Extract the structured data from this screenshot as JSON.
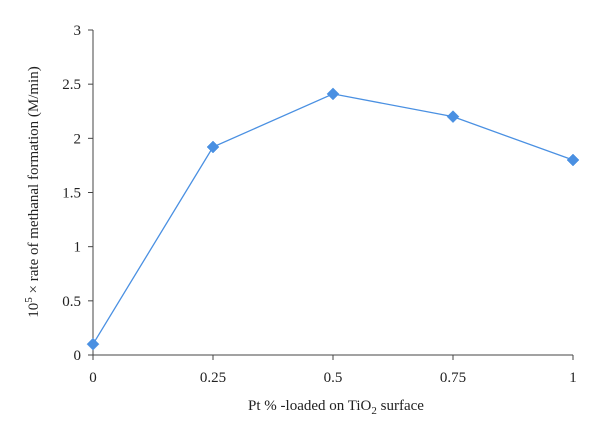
{
  "chart_data": {
    "type": "line",
    "title": "",
    "x": [
      0,
      0.25,
      0.5,
      0.75,
      1
    ],
    "x_tick_labels": [
      "0",
      "0.25",
      "0.5",
      "0.75",
      "1"
    ],
    "y_ticks": [
      0,
      0.5,
      1,
      1.5,
      2,
      2.5,
      3
    ],
    "y_tick_labels": [
      "0",
      "0.5",
      "1",
      "1.5",
      "2",
      "2.5",
      "3"
    ],
    "xlim": [
      0,
      1
    ],
    "ylim": [
      0,
      3
    ],
    "grid": false,
    "series": [
      {
        "values": [
          0.1,
          1.92,
          2.41,
          2.2,
          1.8
        ],
        "color": "#4a90e2",
        "marker": "diamond"
      }
    ],
    "xlabel": {
      "pre": "Pt % -loaded on TiO",
      "sub": "2",
      "post": " surface"
    },
    "ylabel": {
      "base": "10",
      "sup": "5",
      "rest": " × rate of methanal formation (M/min)"
    },
    "axis_color": "#444444"
  }
}
